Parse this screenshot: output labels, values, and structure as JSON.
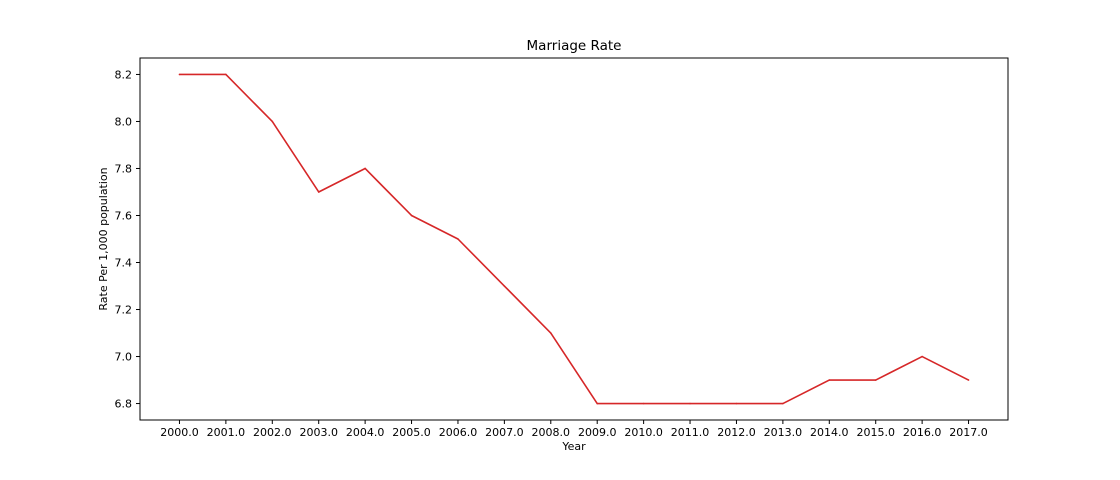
{
  "chart_data": {
    "type": "line",
    "title": "Marriage Rate",
    "xlabel": "Year",
    "ylabel": "Rate Per 1,000 population",
    "x": [
      2000.0,
      2001.0,
      2002.0,
      2003.0,
      2004.0,
      2005.0,
      2006.0,
      2007.0,
      2008.0,
      2009.0,
      2010.0,
      2011.0,
      2012.0,
      2013.0,
      2014.0,
      2015.0,
      2016.0,
      2017.0
    ],
    "x_tick_labels": [
      "2000.0",
      "2001.0",
      "2002.0",
      "2003.0",
      "2004.0",
      "2005.0",
      "2006.0",
      "2007.0",
      "2008.0",
      "2009.0",
      "2010.0",
      "2011.0",
      "2012.0",
      "2013.0",
      "2014.0",
      "2015.0",
      "2016.0",
      "2017.0"
    ],
    "series": [
      {
        "values": [
          8.2,
          8.2,
          8.0,
          7.7,
          7.8,
          7.6,
          7.5,
          7.3,
          7.1,
          6.8,
          6.8,
          6.8,
          6.8,
          6.8,
          6.9,
          6.9,
          7.0,
          6.9
        ],
        "color": "#d62728"
      }
    ],
    "y_ticks": [
      6.8,
      7.0,
      7.2,
      7.4,
      7.6,
      7.8,
      8.0,
      8.2
    ],
    "y_tick_labels": [
      "6.8",
      "7.0",
      "7.2",
      "7.4",
      "7.6",
      "7.8",
      "8.0",
      "8.2"
    ],
    "xlim": [
      1999.15,
      2017.85
    ],
    "ylim": [
      6.73,
      8.27
    ],
    "grid": false,
    "legend": "none"
  }
}
